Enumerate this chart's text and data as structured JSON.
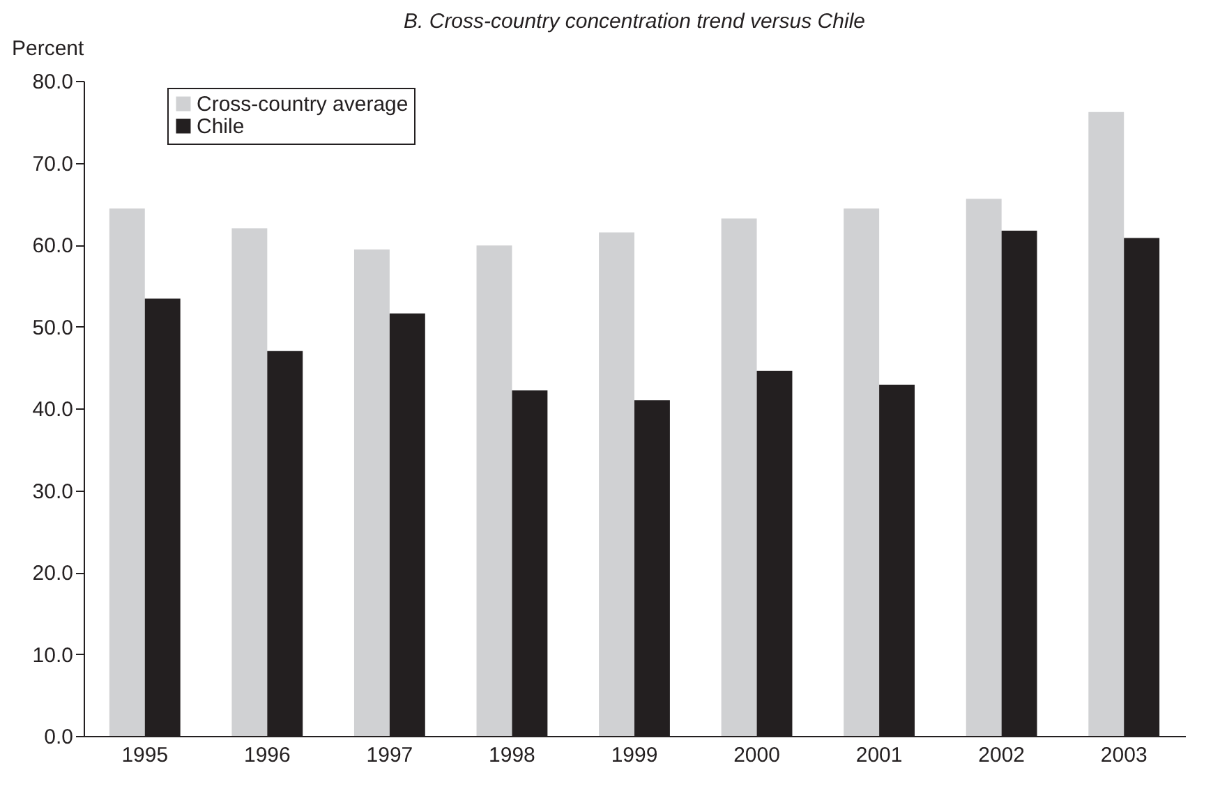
{
  "chart_data": {
    "type": "bar",
    "title": "B. Cross-country concentration trend versus Chile",
    "ylabel": "Percent",
    "categories": [
      "1995",
      "1996",
      "1997",
      "1998",
      "1999",
      "2000",
      "2001",
      "2002",
      "2003"
    ],
    "series": [
      {
        "name": "Cross-country average",
        "color": "#d0d1d3",
        "values": [
          64.4,
          62.0,
          59.4,
          59.9,
          61.5,
          63.2,
          64.4,
          65.6,
          76.2
        ]
      },
      {
        "name": "Chile",
        "color": "#231f20",
        "values": [
          53.4,
          47.0,
          51.6,
          42.2,
          41.0,
          44.6,
          42.9,
          61.7,
          60.8
        ]
      }
    ],
    "ylim": [
      0,
      80
    ],
    "yticks": [
      {
        "value": 0,
        "label": "0.0"
      },
      {
        "value": 10,
        "label": "10.0"
      },
      {
        "value": 20,
        "label": "20.0"
      },
      {
        "value": 30,
        "label": "30.0"
      },
      {
        "value": 40,
        "label": "40.0"
      },
      {
        "value": 50,
        "label": "50.0"
      },
      {
        "value": 60,
        "label": "60.0"
      },
      {
        "value": 70,
        "label": "70.0"
      },
      {
        "value": 80,
        "label": "80.0"
      }
    ],
    "legend": "top left",
    "grid": false
  }
}
